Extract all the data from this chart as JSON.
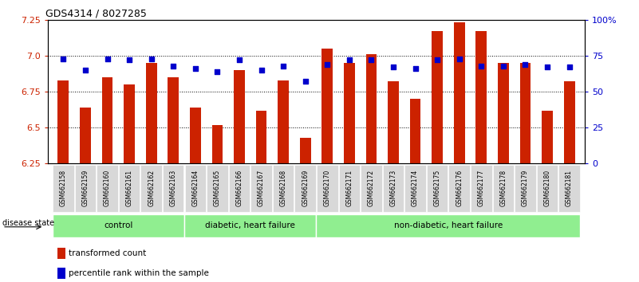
{
  "title": "GDS4314 / 8027285",
  "samples": [
    "GSM662158",
    "GSM662159",
    "GSM662160",
    "GSM662161",
    "GSM662162",
    "GSM662163",
    "GSM662164",
    "GSM662165",
    "GSM662166",
    "GSM662167",
    "GSM662168",
    "GSM662169",
    "GSM662170",
    "GSM662171",
    "GSM662172",
    "GSM662173",
    "GSM662174",
    "GSM662175",
    "GSM662176",
    "GSM662177",
    "GSM662178",
    "GSM662179",
    "GSM662180",
    "GSM662181"
  ],
  "red_values": [
    6.83,
    6.64,
    6.85,
    6.8,
    6.95,
    6.85,
    6.64,
    6.52,
    6.9,
    6.62,
    6.83,
    6.43,
    7.05,
    6.95,
    7.01,
    6.82,
    6.7,
    7.17,
    7.23,
    7.17,
    6.95,
    6.95,
    6.62,
    6.82
  ],
  "blue_values": [
    73,
    65,
    73,
    72,
    73,
    68,
    66,
    64,
    72,
    65,
    68,
    57,
    69,
    72,
    72,
    67,
    66,
    72,
    73,
    68,
    68,
    69,
    67,
    67
  ],
  "group_starts": [
    0,
    6,
    12
  ],
  "group_ends": [
    6,
    12,
    24
  ],
  "group_labels": [
    "control",
    "diabetic, heart failure",
    "non-diabetic, heart failure"
  ],
  "group_green": "#90EE90",
  "ylim_left": [
    6.25,
    7.25
  ],
  "ylim_right": [
    0,
    100
  ],
  "yticks_left": [
    6.25,
    6.5,
    6.75,
    7.0,
    7.25
  ],
  "yticks_right": [
    0,
    25,
    50,
    75,
    100
  ],
  "bar_color": "#CC2200",
  "dot_color": "#0000CC",
  "background_color": "#ffffff",
  "title_fontsize": 9,
  "bar_width": 0.5
}
